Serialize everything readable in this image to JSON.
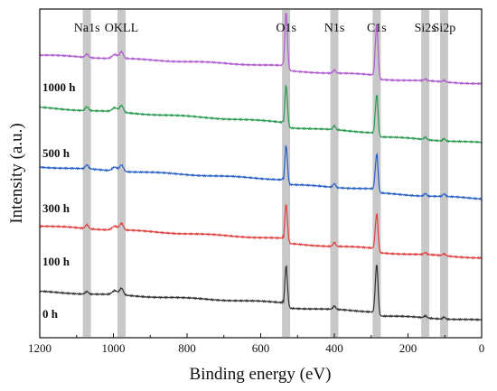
{
  "chart_data": {
    "type": "line",
    "xlabel": "Binding energy (eV)",
    "ylabel": "Intensity (a.u.)",
    "xlim": [
      1200,
      0
    ],
    "x_reversed": true,
    "x_ticks": [
      1200,
      1000,
      800,
      600,
      400,
      200,
      0
    ],
    "y_ticks_shown": false,
    "grid": false,
    "peak_labels": [
      {
        "text": "Na1s",
        "x": 1072
      },
      {
        "text": "OKLL",
        "x": 978
      },
      {
        "text": "O1s",
        "x": 531
      },
      {
        "text": "N1s",
        "x": 400
      },
      {
        "text": "C1s",
        "x": 285
      },
      {
        "text": "Si2s",
        "x": 153
      },
      {
        "text": "Si2p",
        "x": 102
      }
    ],
    "shaded_bands": [
      {
        "center": 1072,
        "width": 22
      },
      {
        "center": 978,
        "width": 22
      },
      {
        "center": 531,
        "width": 22
      },
      {
        "center": 400,
        "width": 22
      },
      {
        "center": 285,
        "width": 22
      },
      {
        "center": 153,
        "width": 22
      },
      {
        "center": 102,
        "width": 22
      }
    ],
    "peaks": [
      {
        "label": "Na1s",
        "x": 1072,
        "width": 6
      },
      {
        "label": "OKLL",
        "x": 978,
        "width": 7
      },
      {
        "label": "O1s",
        "x": 531,
        "width": 5
      },
      {
        "label": "N1s",
        "x": 400,
        "width": 5
      },
      {
        "label": "C1s",
        "x": 285,
        "width": 5
      },
      {
        "label": "Si2s",
        "x": 153,
        "width": 5
      },
      {
        "label": "Si2p",
        "x": 102,
        "width": 5
      }
    ],
    "series": [
      {
        "name": "1000 h",
        "color": "#b05ccf",
        "baseline_at_1200": 0.86,
        "baseline_at_0": 0.8,
        "heights": [
          0.01,
          0.02,
          0.18,
          0.01,
          0.17,
          0.005,
          0.005
        ]
      },
      {
        "name": "500 h",
        "color": "#2a9a4e",
        "baseline_at_1200": 0.7,
        "baseline_at_0": 0.62,
        "heights": [
          0.012,
          0.02,
          0.13,
          0.012,
          0.13,
          0.007,
          0.007
        ]
      },
      {
        "name": "300 h",
        "color": "#2860c4",
        "baseline_at_1200": 0.52,
        "baseline_at_0": 0.45,
        "heights": [
          0.012,
          0.02,
          0.12,
          0.012,
          0.12,
          0.008,
          0.008
        ]
      },
      {
        "name": "100 h",
        "color": "#e04040",
        "baseline_at_1200": 0.34,
        "baseline_at_0": 0.27,
        "heights": [
          0.012,
          0.02,
          0.12,
          0.012,
          0.12,
          0.006,
          0.006
        ]
      },
      {
        "name": "0 h",
        "color": "#333333",
        "baseline_at_1200": 0.14,
        "baseline_at_0": 0.08,
        "heights": [
          0.008,
          0.02,
          0.13,
          0.01,
          0.16,
          0.006,
          0.006
        ]
      }
    ]
  }
}
